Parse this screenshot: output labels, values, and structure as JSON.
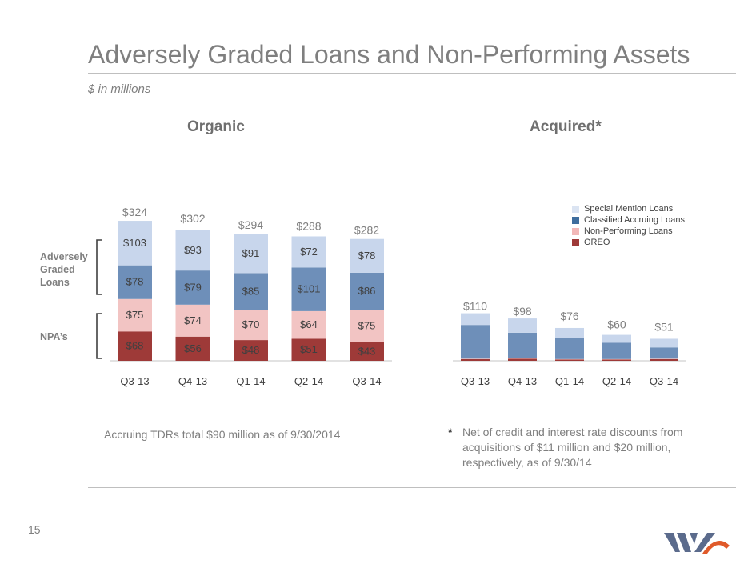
{
  "slide": {
    "title": "Adversely Graded Loans and Non-Performing Assets",
    "subtitle": "$ in millions",
    "page_number": "15",
    "bracket_labels": {
      "adversely": "Adversely Graded Loans",
      "npa": "NPA’s"
    },
    "note_left": "Accruing TDRs total $90 million as of 9/30/2014",
    "note_right_marker": "*",
    "note_right": "Net of credit and interest rate discounts from acquisitions of $11 million and $20 million, respectively, as of 9/30/14"
  },
  "colors": {
    "oreo": "#9e3a38",
    "npl": "#f2c4c3",
    "classified": "#6e8fb9",
    "special": "#c8d6ec",
    "value_text": "#404040",
    "total_text": "#7f7f7f"
  },
  "legend": [
    {
      "label": "Special Mention Loans",
      "color": "#dbe4f2"
    },
    {
      "label": "Classified Accruing Loans",
      "color": "#3f6e9e"
    },
    {
      "label": "Non-Performing Loans",
      "color": "#f2b8b8"
    },
    {
      "label": "OREO",
      "color": "#9e3a38"
    }
  ],
  "chart_data": [
    {
      "type": "bar",
      "stacked": true,
      "title": "Organic",
      "categories": [
        "Q3-13",
        "Q4-13",
        "Q1-14",
        "Q2-14",
        "Q3-14"
      ],
      "series": [
        {
          "name": "OREO",
          "values": [
            68,
            56,
            48,
            51,
            43
          ]
        },
        {
          "name": "Non-Performing Loans",
          "values": [
            75,
            74,
            70,
            64,
            75
          ]
        },
        {
          "name": "Classified Accruing Loans",
          "values": [
            78,
            79,
            85,
            101,
            86
          ]
        },
        {
          "name": "Special Mention Loans",
          "values": [
            103,
            93,
            91,
            72,
            78
          ]
        }
      ],
      "totals": [
        324,
        302,
        294,
        288,
        282
      ],
      "value_labels": true,
      "grid": false,
      "ylim": [
        0,
        330
      ]
    },
    {
      "type": "bar",
      "stacked": true,
      "title": "Acquired*",
      "categories": [
        "Q3-13",
        "Q4-13",
        "Q1-14",
        "Q2-14",
        "Q3-14"
      ],
      "series": [
        {
          "name": "OREO",
          "values": [
            4,
            5,
            3,
            3,
            4
          ]
        },
        {
          "name": "Non-Performing Loans",
          "values": [
            1,
            1,
            1,
            1,
            1
          ]
        },
        {
          "name": "Classified Accruing Loans",
          "values": [
            78,
            59,
            48,
            38,
            26
          ]
        },
        {
          "name": "Special Mention Loans",
          "values": [
            27,
            33,
            24,
            18,
            20
          ]
        }
      ],
      "totals": [
        110,
        98,
        76,
        60,
        51
      ],
      "value_labels": false,
      "grid": false,
      "legend": "top-right",
      "ylim": [
        0,
        330
      ]
    }
  ]
}
